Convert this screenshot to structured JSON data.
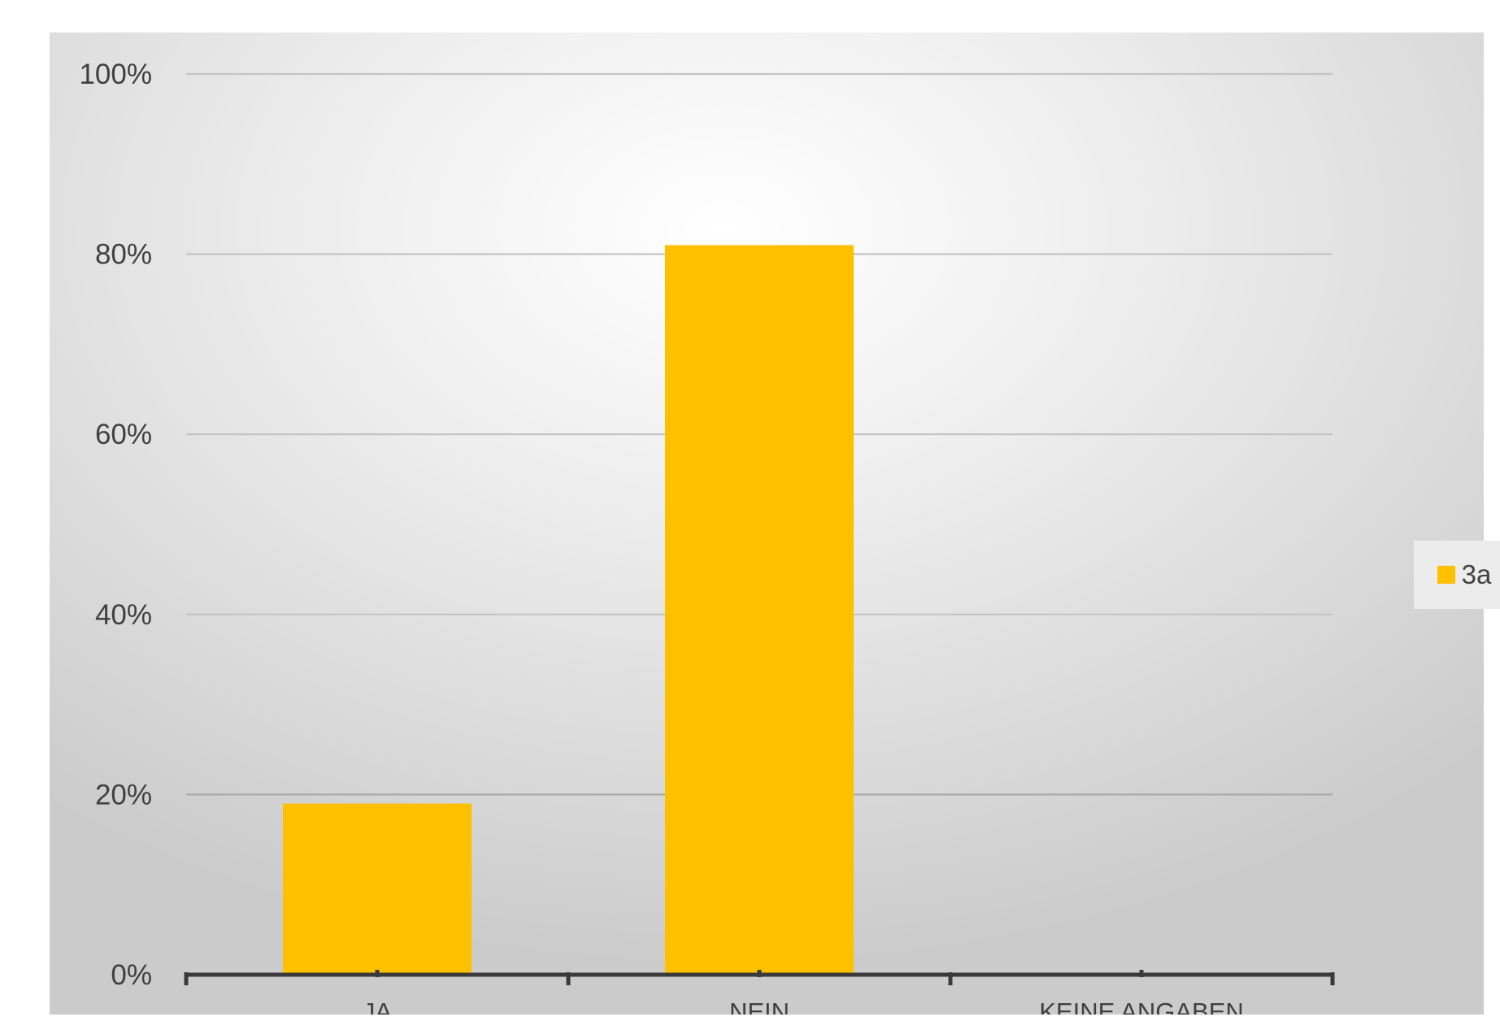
{
  "chart_data": {
    "type": "bar",
    "categories": [
      "JA",
      "NEIN",
      "KEINE ANGABEN"
    ],
    "series": [
      {
        "name": "3a",
        "values": [
          19,
          81,
          0
        ],
        "color": "#FFC000"
      }
    ],
    "y_ticks": [
      "0%",
      "20%",
      "40%",
      "60%",
      "80%",
      "100%"
    ],
    "ylim": [
      0,
      100
    ],
    "y_unit": "%",
    "grid": true,
    "legend_position": "right"
  }
}
